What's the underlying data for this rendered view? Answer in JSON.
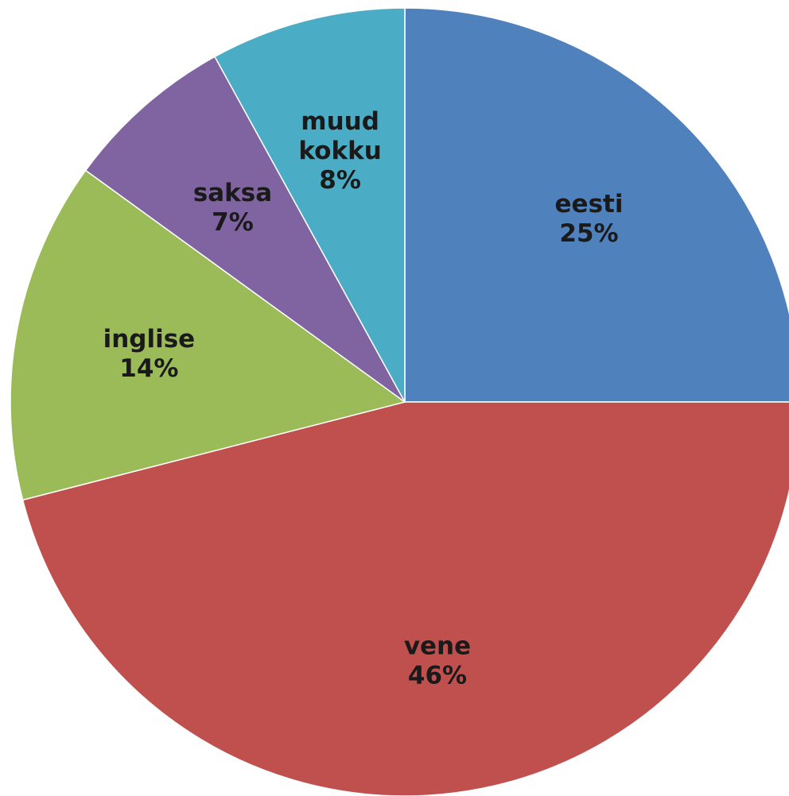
{
  "chart_data": {
    "type": "pie",
    "categories": [
      "eesti",
      "vene",
      "inglise",
      "saksa",
      "muud kokku"
    ],
    "values": [
      25,
      46,
      14,
      7,
      8
    ],
    "unit": "%",
    "colors": [
      "#4F81BD",
      "#C0504D",
      "#9BBB59",
      "#8064A2",
      "#4BACC6"
    ],
    "start": "12 o'clock",
    "direction": "clockwise",
    "slices": [
      {
        "name": "eesti",
        "label_lines": [
          "eesti"
        ],
        "value_label": "25%",
        "color": "#4F81BD"
      },
      {
        "name": "vene",
        "label_lines": [
          "vene"
        ],
        "value_label": "46%",
        "color": "#C0504D"
      },
      {
        "name": "inglise",
        "label_lines": [
          "inglise"
        ],
        "value_label": "14%",
        "color": "#9BBB59"
      },
      {
        "name": "saksa",
        "label_lines": [
          "saksa"
        ],
        "value_label": "7%",
        "color": "#8064A2"
      },
      {
        "name": "muud kokku",
        "label_lines": [
          "muud",
          "kokku"
        ],
        "value_label": "8%",
        "color": "#4BACC6"
      }
    ]
  }
}
